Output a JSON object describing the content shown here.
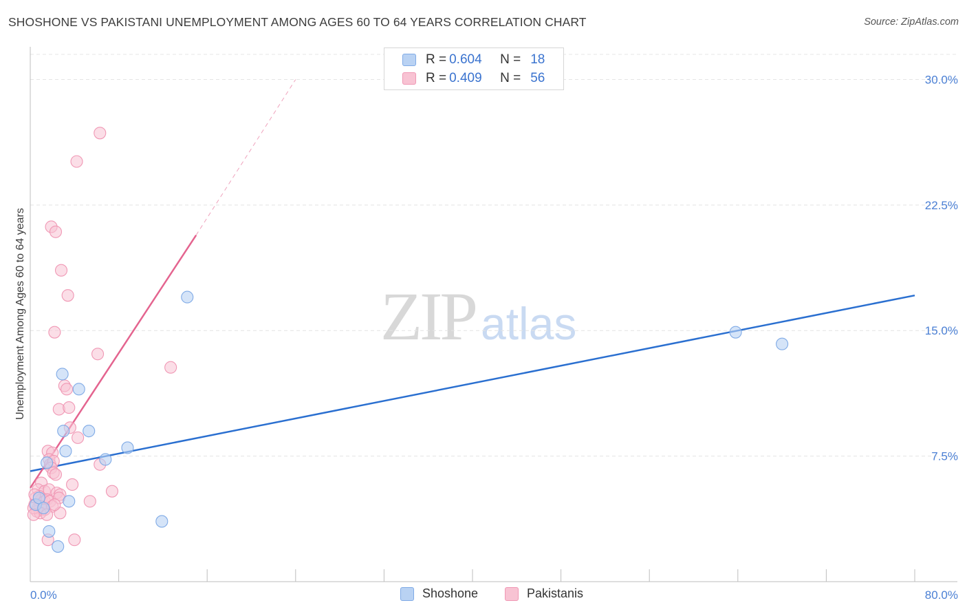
{
  "title": "SHOSHONE VS PAKISTANI UNEMPLOYMENT AMONG AGES 60 TO 64 YEARS CORRELATION CHART",
  "source": "Source: ZipAtlas.com",
  "watermark": {
    "zip": "ZIP",
    "atlas": "atlas"
  },
  "legend": {
    "shoshone": {
      "r_label": "R = ",
      "r": "0.604",
      "n_label": "N = ",
      "n": "18"
    },
    "pakistanis": {
      "r_label": "R = ",
      "r": "0.409",
      "n_label": "N = ",
      "n": "56"
    }
  },
  "bottom_legend": {
    "shoshone": "Shoshone",
    "pakistanis": "Pakistanis"
  },
  "colors": {
    "shoshone_fill": "#b9d2f3",
    "shoshone_stroke": "#7faae6",
    "shoshone_line": "#2a6fd0",
    "pakistanis_fill": "#f8c3d3",
    "pakistanis_stroke": "#f097b4",
    "pakistanis_line": "#e4648f",
    "tick": "#4a7fd4",
    "grid": "#e4e4e4"
  },
  "chart_data": {
    "type": "scatter",
    "title": "SHOSHONE VS PAKISTANI UNEMPLOYMENT AMONG AGES 60 TO 64 YEARS CORRELATION CHART",
    "xlabel": "",
    "ylabel": "Unemployment Among Ages 60 to 64 years",
    "xlim": [
      0,
      80
    ],
    "ylim": [
      0,
      31.5
    ],
    "x_tick_labels": [
      "0.0%",
      "80.0%"
    ],
    "y_ticks": [
      7.5,
      15.0,
      22.5,
      30.0
    ],
    "y_tick_labels": [
      "7.5%",
      "15.0%",
      "22.5%",
      "30.0%"
    ],
    "grid": true,
    "series": [
      {
        "name": "Shoshone",
        "points": [
          [
            0.5,
            4.6
          ],
          [
            1.5,
            7.1
          ],
          [
            1.7,
            3.0
          ],
          [
            2.5,
            2.1
          ],
          [
            3.0,
            9.0
          ],
          [
            2.9,
            12.4
          ],
          [
            3.2,
            7.8
          ],
          [
            3.5,
            4.8
          ],
          [
            4.4,
            11.5
          ],
          [
            5.3,
            9.0
          ],
          [
            6.8,
            7.3
          ],
          [
            8.8,
            8.0
          ],
          [
            11.9,
            3.6
          ],
          [
            14.2,
            17.0
          ],
          [
            63.8,
            14.9
          ],
          [
            68.0,
            14.2
          ],
          [
            0.8,
            5.0
          ],
          [
            1.2,
            4.4
          ]
        ],
        "trend": {
          "x0": 0,
          "y0": 6.6,
          "x1": 80,
          "y1": 17.1
        }
      },
      {
        "name": "Pakistanis",
        "points": [
          [
            6.3,
            26.8
          ],
          [
            4.2,
            25.1
          ],
          [
            1.9,
            21.2
          ],
          [
            2.3,
            20.9
          ],
          [
            2.8,
            18.6
          ],
          [
            3.4,
            17.1
          ],
          [
            2.2,
            14.9
          ],
          [
            6.1,
            13.6
          ],
          [
            12.7,
            12.8
          ],
          [
            3.1,
            11.7
          ],
          [
            3.3,
            11.5
          ],
          [
            2.6,
            10.3
          ],
          [
            3.5,
            10.4
          ],
          [
            3.6,
            9.2
          ],
          [
            4.3,
            8.6
          ],
          [
            1.6,
            7.8
          ],
          [
            2.0,
            7.7
          ],
          [
            1.7,
            7.3
          ],
          [
            1.8,
            7.0
          ],
          [
            2.1,
            7.2
          ],
          [
            6.3,
            7.0
          ],
          [
            1.9,
            6.8
          ],
          [
            2.1,
            6.5
          ],
          [
            2.3,
            6.4
          ],
          [
            1.0,
            5.9
          ],
          [
            3.8,
            5.8
          ],
          [
            0.7,
            5.5
          ],
          [
            1.3,
            5.4
          ],
          [
            1.7,
            5.5
          ],
          [
            2.4,
            5.3
          ],
          [
            2.7,
            5.2
          ],
          [
            7.4,
            5.4
          ],
          [
            0.5,
            5.0
          ],
          [
            0.8,
            5.1
          ],
          [
            1.0,
            4.9
          ],
          [
            1.3,
            4.8
          ],
          [
            1.5,
            4.9
          ],
          [
            1.8,
            4.8
          ],
          [
            2.6,
            5.0
          ],
          [
            5.4,
            4.8
          ],
          [
            0.4,
            4.6
          ],
          [
            0.7,
            4.4
          ],
          [
            0.9,
            4.5
          ],
          [
            1.1,
            4.3
          ],
          [
            1.3,
            4.3
          ],
          [
            2.0,
            4.5
          ],
          [
            0.6,
            4.2
          ],
          [
            0.9,
            4.1
          ],
          [
            1.5,
            4.0
          ],
          [
            2.7,
            4.1
          ],
          [
            0.3,
            4.4
          ],
          [
            0.4,
            5.2
          ],
          [
            1.6,
            2.5
          ],
          [
            4.0,
            2.5
          ],
          [
            0.3,
            4.0
          ],
          [
            2.2,
            4.6
          ]
        ],
        "trend": {
          "x0": 0,
          "y0": 5.6,
          "x1": 15.0,
          "y1": 20.7
        },
        "trend_extension": {
          "x0": 15.0,
          "y0": 20.7,
          "x1": 24.0,
          "y1": 30.0
        }
      }
    ]
  }
}
